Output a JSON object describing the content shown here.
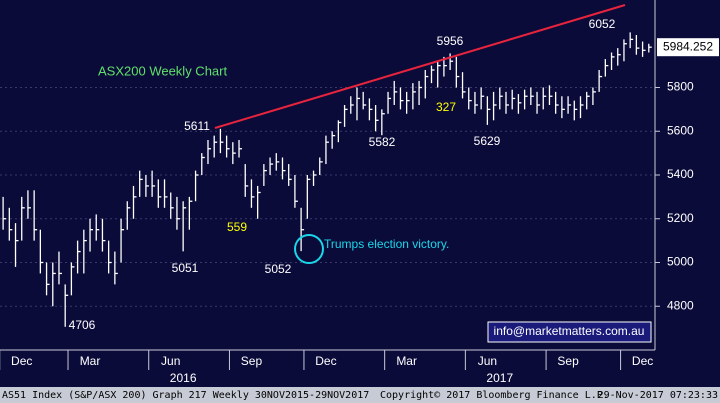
{
  "chart_data": {
    "type": "ohlc",
    "title": "ASX200 Weekly Chart",
    "color": "#ffffff",
    "high": [
      5300,
      5250,
      5180,
      5300,
      5330,
      5330,
      5150,
      5000,
      5000,
      5050,
      4900,
      5000,
      5100,
      5150,
      5200,
      5220,
      5200,
      5100,
      5050,
      5200,
      5280,
      5350,
      5420,
      5400,
      5420,
      5380,
      5380,
      5320,
      5300,
      5280,
      5300,
      5420,
      5500,
      5560,
      5580,
      5611,
      5580,
      5550,
      5560,
      5450,
      5380,
      5350,
      5450,
      5480,
      5500,
      5480,
      5450,
      5400,
      5250,
      5400,
      5420,
      5480,
      5580,
      5600,
      5650,
      5720,
      5760,
      5800,
      5780,
      5750,
      5720,
      5700,
      5780,
      5830,
      5800,
      5780,
      5820,
      5830,
      5880,
      5900,
      5920,
      5940,
      5956,
      5940,
      5870,
      5800,
      5780,
      5800,
      5760,
      5780,
      5800,
      5780,
      5790,
      5770,
      5790,
      5800,
      5780,
      5800,
      5810,
      5780,
      5760,
      5760,
      5740,
      5760,
      5780,
      5800,
      5880,
      5930,
      5960,
      5980,
      6020,
      6052,
      6040,
      6010,
      6000
    ],
    "low": [
      5150,
      5100,
      4980,
      5100,
      5200,
      5100,
      4950,
      4850,
      4800,
      4900,
      4706,
      4850,
      4950,
      4950,
      5050,
      5100,
      5050,
      4950,
      4900,
      5000,
      5150,
      5200,
      5300,
      5300,
      5300,
      5250,
      5250,
      5200,
      5150,
      5051,
      5150,
      5280,
      5400,
      5450,
      5480,
      5500,
      5480,
      5450,
      5480,
      5300,
      5250,
      5200,
      5350,
      5400,
      5420,
      5380,
      5350,
      5250,
      5052,
      5200,
      5350,
      5400,
      5450,
      5520,
      5550,
      5620,
      5680,
      5650,
      5700,
      5650,
      5600,
      5582,
      5680,
      5720,
      5700,
      5680,
      5700,
      5720,
      5750,
      5820,
      5800,
      5850,
      5880,
      5800,
      5750,
      5700,
      5680,
      5700,
      5629,
      5650,
      5700,
      5680,
      5700,
      5680,
      5700,
      5720,
      5680,
      5700,
      5720,
      5680,
      5660,
      5680,
      5650,
      5660,
      5700,
      5720,
      5780,
      5850,
      5880,
      5900,
      5920,
      5980,
      5950,
      5940,
      5960
    ],
    "close": [
      5200,
      5150,
      5100,
      5250,
      5250,
      5150,
      5000,
      4900,
      4950,
      4950,
      4850,
      4980,
      5050,
      5100,
      5150,
      5150,
      5100,
      5000,
      4950,
      5150,
      5250,
      5300,
      5380,
      5350,
      5350,
      5300,
      5300,
      5250,
      5200,
      5250,
      5280,
      5400,
      5480,
      5520,
      5550,
      5550,
      5520,
      5500,
      5520,
      5350,
      5300,
      5320,
      5420,
      5450,
      5460,
      5420,
      5380,
      5280,
      5150,
      5380,
      5400,
      5460,
      5550,
      5580,
      5640,
      5700,
      5720,
      5750,
      5720,
      5700,
      5650,
      5680,
      5750,
      5780,
      5740,
      5740,
      5780,
      5800,
      5850,
      5880,
      5900,
      5900,
      5920,
      5850,
      5780,
      5740,
      5720,
      5760,
      5700,
      5720,
      5760,
      5720,
      5750,
      5730,
      5760,
      5760,
      5720,
      5760,
      5760,
      5720,
      5700,
      5720,
      5700,
      5720,
      5760,
      5780,
      5850,
      5900,
      5940,
      5950,
      6000,
      6020,
      5980,
      5970,
      5984.252
    ],
    "last_price": 5984.252,
    "xlim": [
      -0.5,
      105
    ],
    "xticks": [
      {
        "value": 3,
        "label": "Dec"
      },
      {
        "value": 14,
        "label": "Mar"
      },
      {
        "value": 27,
        "label": "Jun"
      },
      {
        "value": 40,
        "label": "Sep"
      },
      {
        "value": 52,
        "label": "Dec"
      },
      {
        "value": 65,
        "label": "Mar"
      },
      {
        "value": 78,
        "label": "Jun"
      },
      {
        "value": 91,
        "label": "Sep"
      },
      {
        "value": 103,
        "label": "Dec"
      }
    ],
    "year_ticks": [
      {
        "value": 29,
        "label": "2016"
      },
      {
        "value": 80,
        "label": "2017"
      }
    ],
    "ylim": [
      4600,
      6200
    ],
    "yticks": [
      4800,
      5000,
      5200,
      5400,
      5600,
      5800
    ],
    "grid": true,
    "annotations": [
      {
        "text": "5611",
        "color": "#ffffff"
      },
      {
        "text": "4706",
        "color": "#ffffff"
      },
      {
        "text": "5051",
        "color": "#ffffff"
      },
      {
        "text": "559",
        "color": "#ffff00"
      },
      {
        "text": "5052",
        "color": "#ffffff"
      },
      {
        "text": "5582",
        "color": "#ffffff"
      },
      {
        "text": "5956",
        "color": "#ffffff"
      },
      {
        "text": "327",
        "color": "#ffff00"
      },
      {
        "text": "5629",
        "color": "#ffffff"
      },
      {
        "text": "6052",
        "color": "#ffffff"
      }
    ],
    "event_label": "Trumps election victory.",
    "contact": "info@marketmatters.com.au",
    "footer": {
      "left": "AS51 Index (S&P/ASX 200) Graph 217  Weekly 30NOV2015-29NOV2017",
      "center": "Copyright© 2017 Bloomberg Finance L.P.",
      "right": "29-Nov-2017 07:23:33"
    }
  }
}
